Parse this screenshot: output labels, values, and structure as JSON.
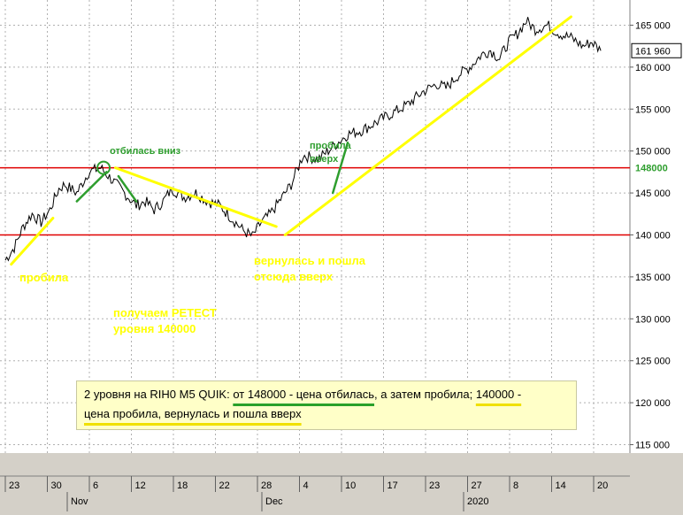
{
  "chart_data": {
    "type": "line",
    "instrument": "RIH0",
    "timeframe": "M5",
    "terminal": "QUIK",
    "ylim": [
      114000,
      168000
    ],
    "y_ticks": [
      115000,
      120000,
      125000,
      130000,
      135000,
      140000,
      145000,
      150000,
      155000,
      160000,
      165000
    ],
    "y_tick_labels": [
      "115 000",
      "120 000",
      "125 000",
      "130 000",
      "135 000",
      "140 000",
      "145 000",
      "150 000",
      "155 000",
      "160 000",
      "165 000"
    ],
    "x_ticks": [
      "23",
      "30",
      "6",
      "12",
      "18",
      "22",
      "28",
      "4",
      "10",
      "17",
      "23",
      "27",
      "8",
      "14",
      "20"
    ],
    "month_labels": [
      "Nov",
      "Dec",
      "2020"
    ],
    "last_price_label": "161 960",
    "last_price": 161960,
    "levels": [
      {
        "value": 148000,
        "label": "148000",
        "color": "#e00000"
      },
      {
        "value": 140000,
        "label": "",
        "color": "#e00000"
      }
    ],
    "price_series": {
      "t": [
        0,
        3,
        6,
        9,
        12,
        15,
        18,
        20,
        24,
        28,
        32,
        36,
        40,
        44,
        47,
        50,
        53,
        56,
        60,
        64,
        68,
        72,
        76,
        80,
        83,
        86,
        89,
        92,
        96,
        100,
        105,
        110,
        115,
        120,
        125,
        130,
        135,
        140,
        145,
        148,
        152,
        156,
        160,
        163,
        166,
        169,
        172,
        175,
        178,
        182,
        186,
        190,
        194,
        197,
        200
      ],
      "y": [
        137000,
        138500,
        141000,
        142500,
        141500,
        143000,
        145500,
        146000,
        145000,
        147500,
        148000,
        146500,
        145000,
        143500,
        144000,
        143000,
        144000,
        145500,
        144500,
        145000,
        144000,
        143500,
        142000,
        140500,
        139800,
        141500,
        142500,
        144000,
        146000,
        149500,
        149000,
        150500,
        152000,
        152500,
        153500,
        154500,
        155500,
        157000,
        158000,
        157500,
        159000,
        160000,
        161500,
        162000,
        161000,
        163000,
        164000,
        165500,
        164500,
        165000,
        164000,
        163500,
        162500,
        163000,
        161960
      ]
    },
    "trend_lines": [
      {
        "color": "#ffff00",
        "from": [
          2,
          136500
        ],
        "to": [
          16,
          142000
        ]
      },
      {
        "color": "#ffff00",
        "from": [
          37,
          148000
        ],
        "to": [
          91,
          141000
        ]
      },
      {
        "color": "#ffff00",
        "from": [
          94,
          140000
        ],
        "to": [
          142,
          153000
        ]
      },
      {
        "color": "#ffff00",
        "from": [
          142,
          153000
        ],
        "to": [
          190,
          166000
        ]
      },
      {
        "color": "#2e9e2e",
        "from": [
          24,
          144000
        ],
        "to": [
          34,
          147500
        ]
      },
      {
        "color": "#2e9e2e",
        "from": [
          38,
          147000
        ],
        "to": [
          44,
          144000
        ]
      },
      {
        "color": "#2e9e2e",
        "from": [
          110,
          145000
        ],
        "to": [
          115,
          151000
        ]
      }
    ],
    "circle_marker": {
      "t": 33,
      "y": 148000,
      "color": "#2e9e2e"
    }
  },
  "annotations": {
    "probila_left": "пробила",
    "otbilas_vniz": "отбилась вниз",
    "vernulas_line1": "вернулась и пошла",
    "vernulas_line2": "отсюда вверх",
    "poluchaem_line1": "получаем РЕТЕСТ",
    "poluchaem_line2": "уровня 140000",
    "probila_vverh_line1": "пробила",
    "probila_vverh_line2": "вверх"
  },
  "note": {
    "part1": "2 уровня на RIH0  M5 QUIK: ",
    "part2": "от 148000 - цена отбилась",
    "part3": ", а затем пробила; ",
    "part4": "140000 -",
    "part5": "цена пробила, вернулась и пошла вверх"
  }
}
